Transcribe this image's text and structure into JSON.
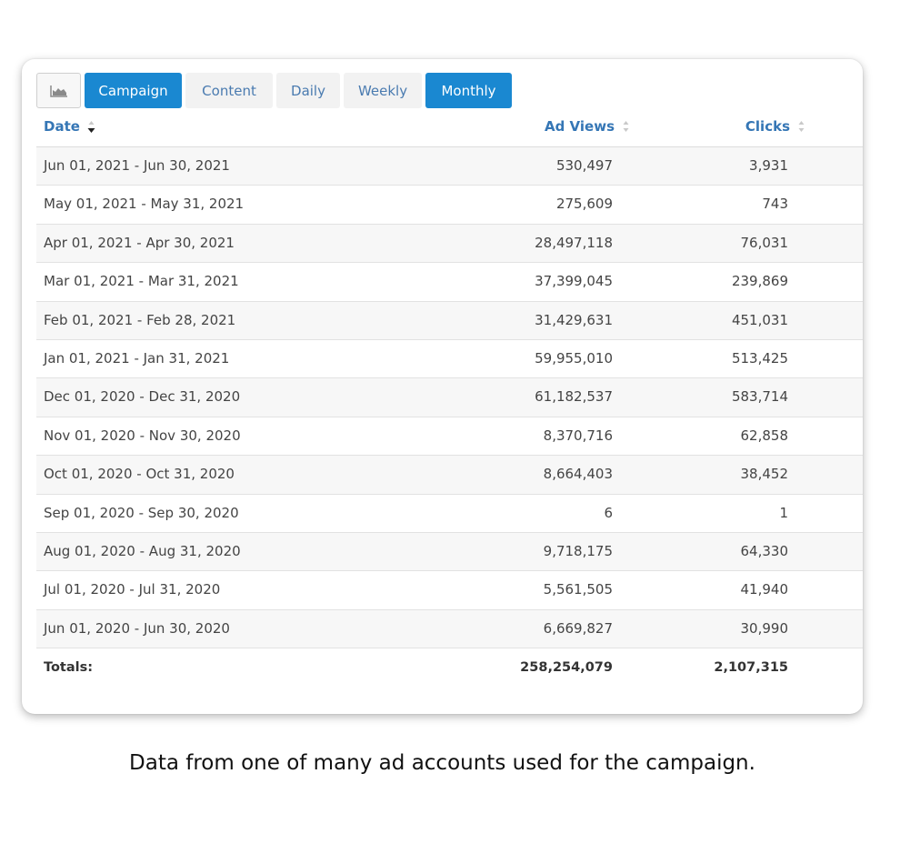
{
  "toolbar": {
    "chart_icon": "area-chart-icon",
    "tabs": [
      {
        "label": "Campaign",
        "active": true
      },
      {
        "label": "Content",
        "active": false
      },
      {
        "label": "Daily",
        "active": false
      },
      {
        "label": "Weekly",
        "active": false
      },
      {
        "label": "Monthly",
        "active": true
      }
    ]
  },
  "table": {
    "headers": {
      "date": "Date",
      "ad_views": "Ad Views",
      "clicks": "Clicks"
    },
    "sort": {
      "column": "date",
      "direction": "descending"
    },
    "rows": [
      {
        "date": "Jun 01, 2021 - Jun 30, 2021",
        "ad_views": "530,497",
        "clicks": "3,931"
      },
      {
        "date": "May 01, 2021 - May 31, 2021",
        "ad_views": "275,609",
        "clicks": "743"
      },
      {
        "date": "Apr 01, 2021 - Apr 30, 2021",
        "ad_views": "28,497,118",
        "clicks": "76,031"
      },
      {
        "date": "Mar 01, 2021 - Mar 31, 2021",
        "ad_views": "37,399,045",
        "clicks": "239,869"
      },
      {
        "date": "Feb 01, 2021 - Feb 28, 2021",
        "ad_views": "31,429,631",
        "clicks": "451,031"
      },
      {
        "date": "Jan 01, 2021 - Jan 31, 2021",
        "ad_views": "59,955,010",
        "clicks": "513,425"
      },
      {
        "date": "Dec 01, 2020 - Dec 31, 2020",
        "ad_views": "61,182,537",
        "clicks": "583,714"
      },
      {
        "date": "Nov 01, 2020 - Nov 30, 2020",
        "ad_views": "8,370,716",
        "clicks": "62,858"
      },
      {
        "date": "Oct 01, 2020 - Oct 31, 2020",
        "ad_views": "8,664,403",
        "clicks": "38,452"
      },
      {
        "date": "Sep 01, 2020 - Sep 30, 2020",
        "ad_views": "6",
        "clicks": "1"
      },
      {
        "date": "Aug 01, 2020 - Aug 31, 2020",
        "ad_views": "9,718,175",
        "clicks": "64,330"
      },
      {
        "date": "Jul 01, 2020 - Jul 31, 2020",
        "ad_views": "5,561,505",
        "clicks": "41,940"
      },
      {
        "date": "Jun 01, 2020 - Jun 30, 2020",
        "ad_views": "6,669,827",
        "clicks": "30,990"
      }
    ],
    "totals": {
      "label": "Totals:",
      "ad_views": "258,254,079",
      "clicks": "2,107,315"
    }
  },
  "caption": "Data from one of many ad accounts used for the campaign.",
  "colors": {
    "accent": "#1a88d1",
    "header_text": "#3576b5",
    "tab_text": "#4a7bb0"
  }
}
